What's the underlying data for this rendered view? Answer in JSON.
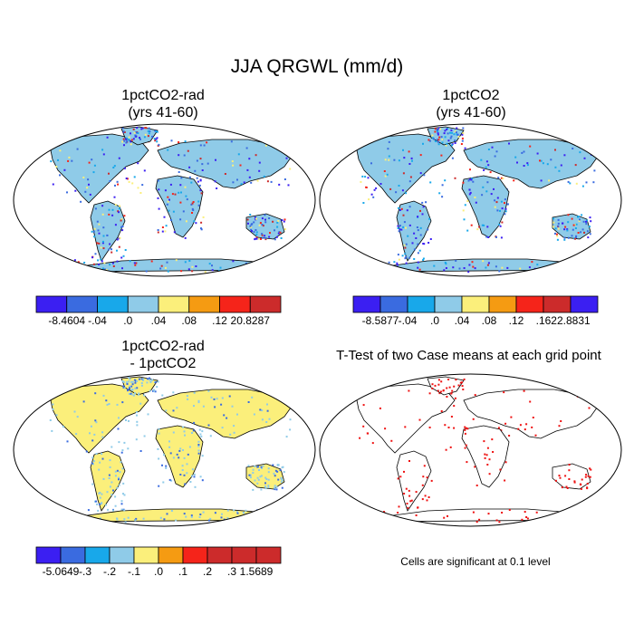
{
  "figure": {
    "title": "JJA QRGWL (mm/d)"
  },
  "colors": [
    "#3b1ff2",
    "#3a6be0",
    "#18a8ea",
    "#8fcbe8",
    "#fbef7b",
    "#f59b12",
    "#f5241a",
    "#cc2b2b"
  ],
  "land_color": "#8fcbe8",
  "diff_land_color": "#fbef7b",
  "panels": [
    {
      "id": "p1",
      "title": "1pctCO2-rad\n(yrs 41-60)",
      "colorbar_labels": [
        "-8.4604",
        "-.04",
        ".0",
        ".04",
        ".08",
        ".12",
        "20.8287"
      ]
    },
    {
      "id": "p2",
      "title": "1pctCO2\n(yrs 41-60)",
      "colorbar_labels": [
        "-8.5877",
        "-.04",
        ".0",
        ".04",
        ".08",
        ".12",
        ".16",
        "22.8831"
      ]
    },
    {
      "id": "p3",
      "title": "1pctCO2-rad\n- 1pctCO2",
      "colorbar_labels": [
        "-5.0649",
        "-.3",
        "-.2",
        "-.1",
        ".0",
        ".1",
        ".2",
        ".3",
        "1.5689"
      ]
    },
    {
      "id": "p4",
      "title": "T-Test of two Case means at each grid point",
      "note": "Cells are significant at 0.1 level"
    }
  ],
  "chart_data": [
    {
      "type": "heatmap",
      "title": "1pctCO2-rad (yrs 41-60)",
      "colorbar": {
        "min": -8.4604,
        "max": 20.8287,
        "levels": [
          -0.04,
          0.0,
          0.04,
          0.08,
          0.12
        ]
      }
    },
    {
      "type": "heatmap",
      "title": "1pctCO2 (yrs 41-60)",
      "colorbar": {
        "min": -8.5877,
        "max": 22.8831,
        "levels": [
          -0.04,
          0.0,
          0.04,
          0.08,
          0.12,
          0.16
        ]
      }
    },
    {
      "type": "heatmap",
      "title": "1pctCO2-rad - 1pctCO2",
      "colorbar": {
        "min": -5.0649,
        "max": 1.5689,
        "levels": [
          -0.3,
          -0.2,
          -0.1,
          0.0,
          0.1,
          0.2,
          0.3
        ]
      }
    },
    {
      "type": "heatmap",
      "title": "T-Test of two Case means at each grid point",
      "significance_level": 0.1
    }
  ]
}
